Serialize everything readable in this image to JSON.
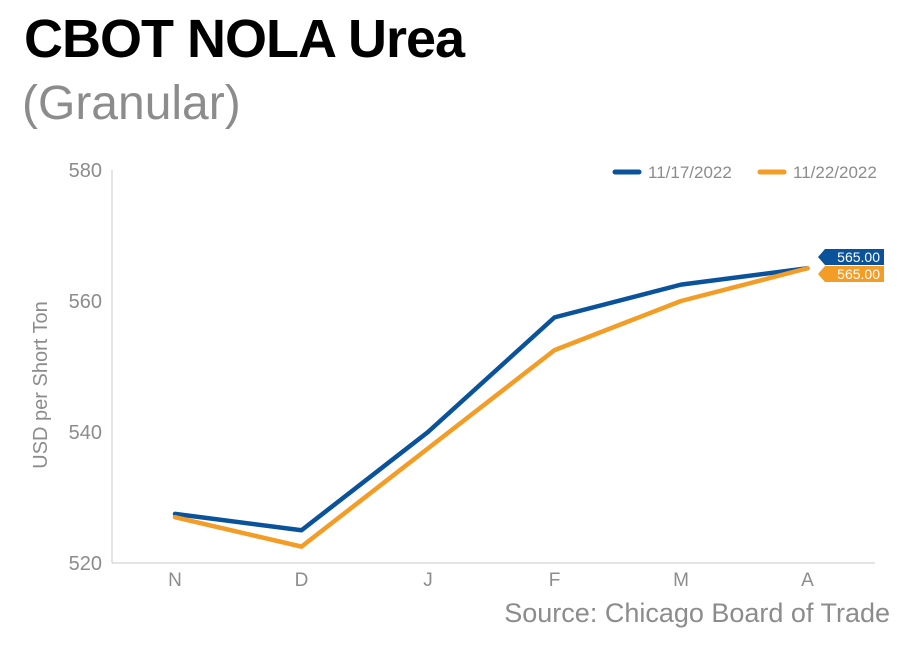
{
  "header": {
    "title": "CBOT NOLA Urea",
    "subtitle": "(Granular)"
  },
  "source": "Source: Chicago Board of Trade",
  "chart_data": {
    "type": "line",
    "categories": [
      "N",
      "D",
      "J",
      "F",
      "M",
      "A"
    ],
    "series": [
      {
        "name": "11/17/2022",
        "color": "#0a539b",
        "values": [
          527.5,
          525.0,
          540.0,
          557.5,
          562.5,
          565.0
        ],
        "end_label": "565.00"
      },
      {
        "name": "11/22/2022",
        "color": "#f39c26",
        "values": [
          527.0,
          522.5,
          537.5,
          552.5,
          560.0,
          565.0
        ],
        "end_label": "565.00"
      }
    ],
    "ylabel": "USD per Short Ton",
    "xlabel": "",
    "ylim": [
      520,
      580
    ],
    "yticks": [
      520,
      540,
      560,
      580
    ],
    "grid": false,
    "legend_position": "top-right"
  }
}
